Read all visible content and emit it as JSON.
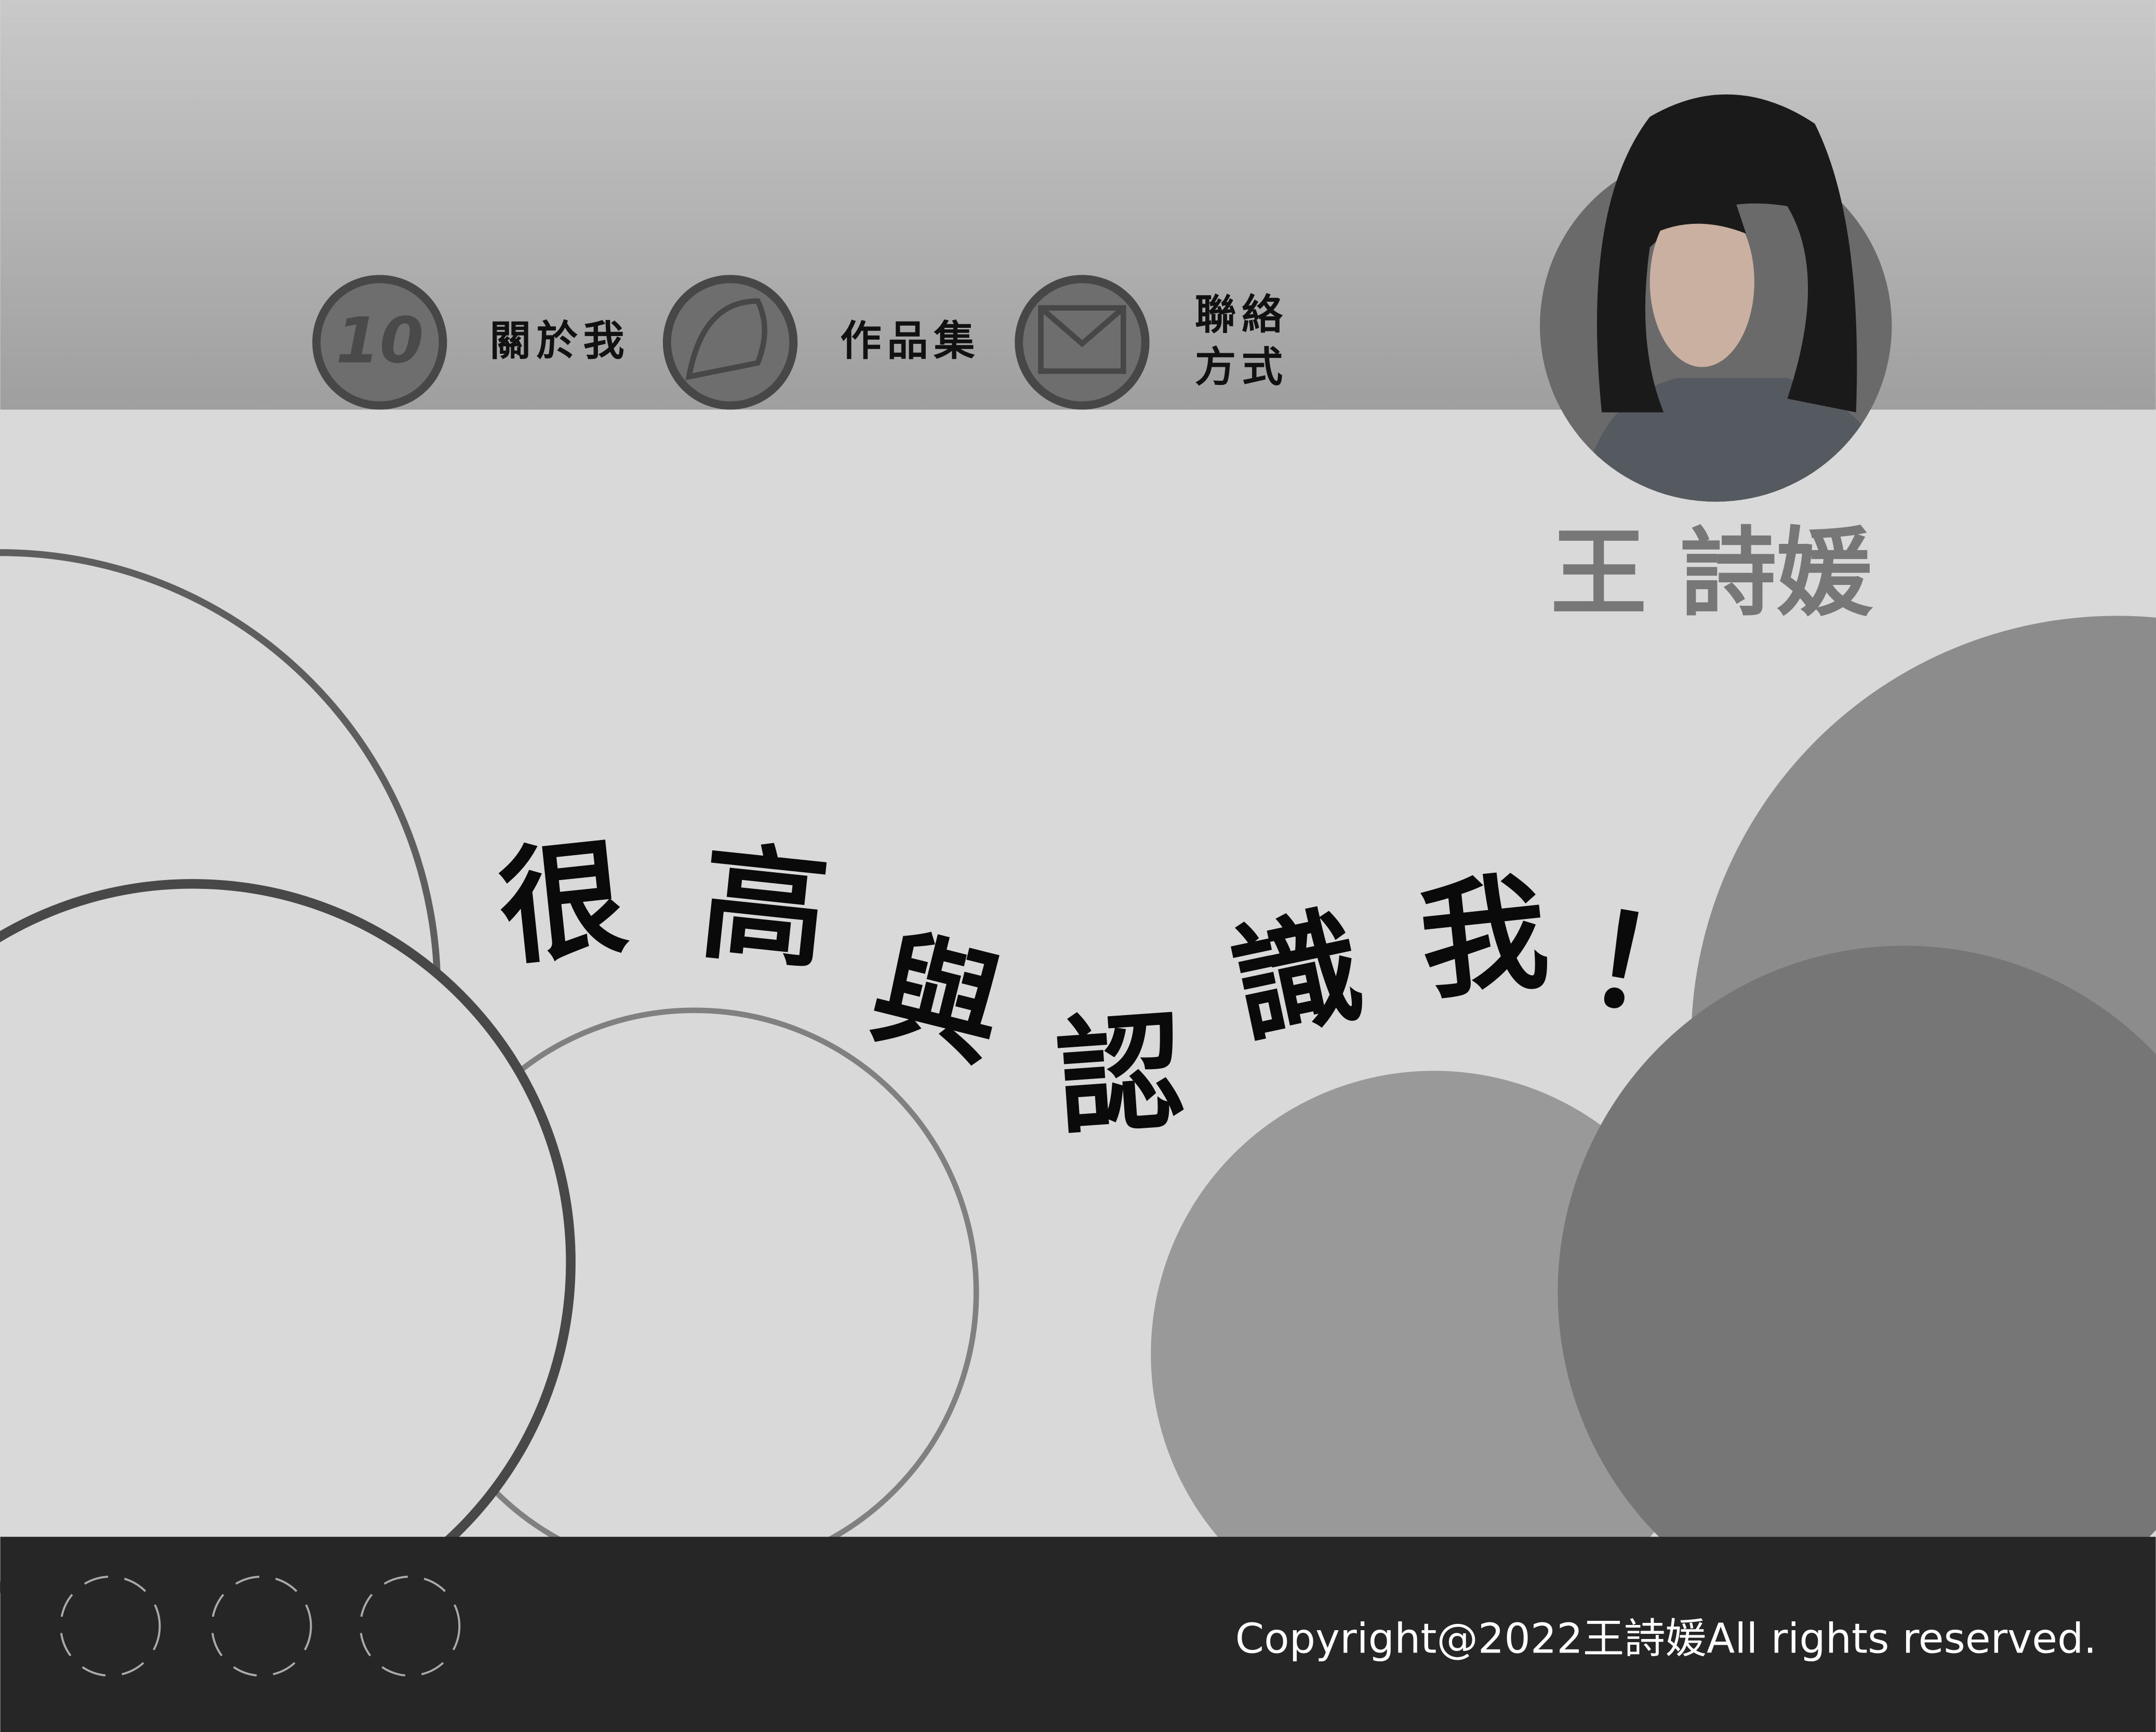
{
  "nav": [
    {
      "icon_text": "10",
      "label_lines": [
        "關於我"
      ]
    },
    {
      "label_lines": [
        "作品集"
      ]
    },
    {
      "label_lines": [
        "聯絡",
        "方式"
      ]
    }
  ],
  "profile": {
    "name": "王 詩媛"
  },
  "headline": [
    "很",
    "高",
    "與",
    "認",
    "識",
    "我",
    "！"
  ],
  "footer": {
    "copyright": "Copyright@2022王詩媛All rights reserved."
  }
}
